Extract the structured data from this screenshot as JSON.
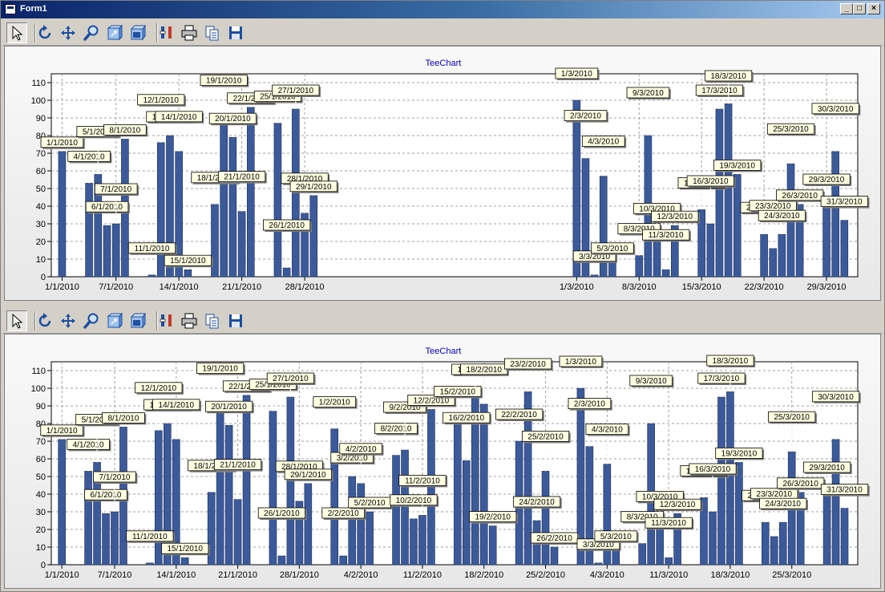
{
  "window": {
    "title": "Form1",
    "min_label": "_",
    "max_label": "□",
    "close_label": "×"
  },
  "toolbar_icons": [
    "pointer-icon",
    "rotate-icon",
    "move-icon",
    "zoom-icon",
    "view3d-icon",
    "depth3d-icon",
    "edit-icon",
    "print-icon",
    "copy-icon",
    "save-icon"
  ],
  "chart_data": [
    {
      "type": "bar",
      "title": "TeeChart",
      "ylim": [
        0,
        115
      ],
      "yticks": [
        0,
        10,
        20,
        30,
        40,
        50,
        60,
        70,
        80,
        90,
        100,
        110
      ],
      "bar_color": "#3c5a9a",
      "label_color": "#ffffe1",
      "xtick_labels": [
        "1/1/2010",
        "7/1/2010",
        "14/1/2010",
        "21/1/2010",
        "28/1/2010",
        "1/3/2010",
        "8/3/2010",
        "15/3/2010",
        "22/3/2010",
        "29/3/2010"
      ],
      "xticks": [
        "1/1/2010",
        "7/1/2010",
        "14/1/2010",
        "21/1/2010",
        "28/1/2010",
        "1/3/2010",
        "8/3/2010",
        "15/3/2010",
        "22/3/2010",
        "29/3/2010"
      ],
      "gap_after": "29/1/2010",
      "categories": [
        "1/1/2010",
        "4/1/2010",
        "5/1/2010",
        "6/1/2010",
        "7/1/2010",
        "8/1/2010",
        "11/1/2010",
        "12/1/2010",
        "13/1/2010",
        "14/1/2010",
        "15/1/2010",
        "18/1/2010",
        "19/1/2010",
        "20/1/2010",
        "21/1/2010",
        "22/1/2010",
        "25/1/2010",
        "26/1/2010",
        "27/1/2010",
        "28/1/2010",
        "29/1/2010",
        "1/3/2010",
        "2/3/2010",
        "3/3/2010",
        "4/3/2010",
        "5/3/2010",
        "8/3/2010",
        "9/3/2010",
        "10/3/2010",
        "11/3/2010",
        "12/3/2010",
        "15/3/2010",
        "16/3/2010",
        "17/3/2010",
        "18/3/2010",
        "19/3/2010",
        "22/3/2010",
        "23/3/2010",
        "24/3/2010",
        "25/3/2010",
        "26/3/2010",
        "29/3/2010",
        "30/3/2010",
        "31/3/2010"
      ],
      "values": [
        71,
        53,
        58,
        29,
        30,
        78,
        1,
        76,
        80,
        71,
        4,
        41,
        87,
        79,
        37,
        96,
        87,
        5,
        95,
        36,
        46,
        100,
        67,
        1,
        57,
        11,
        12,
        80,
        28,
        4,
        29,
        38,
        30,
        95,
        98,
        58,
        24,
        16,
        24,
        64,
        41,
        40,
        71,
        32
      ]
    },
    {
      "type": "bar",
      "title": "TeeChart",
      "ylim": [
        0,
        115
      ],
      "yticks": [
        0,
        10,
        20,
        30,
        40,
        50,
        60,
        70,
        80,
        90,
        100,
        110
      ],
      "bar_color": "#3c5a9a",
      "label_color": "#ffffe1",
      "xtick_labels": [
        "1/1/2010",
        "7/1/2010",
        "14/1/2010",
        "21/1/2010",
        "28/1/2010",
        "4/2/2010",
        "11/2/2010",
        "18/2/2010",
        "25/2/2010",
        "4/3/2010",
        "11/3/2010",
        "18/3/2010",
        "25/3/2010"
      ],
      "xticks": [
        "1/1/2010",
        "7/1/2010",
        "14/1/2010",
        "21/1/2010",
        "28/1/2010",
        "4/2/2010",
        "11/2/2010",
        "18/2/2010",
        "25/2/2010",
        "4/3/2010",
        "11/3/2010",
        "18/3/2010",
        "25/3/2010"
      ],
      "gap_after": "",
      "categories": [
        "1/1/2010",
        "4/1/2010",
        "5/1/2010",
        "6/1/2010",
        "7/1/2010",
        "8/1/2010",
        "11/1/2010",
        "12/1/2010",
        "13/1/2010",
        "14/1/2010",
        "15/1/2010",
        "18/1/2010",
        "19/1/2010",
        "20/1/2010",
        "21/1/2010",
        "22/1/2010",
        "25/1/2010",
        "26/1/2010",
        "27/1/2010",
        "28/1/2010",
        "29/1/2010",
        "1/2/2010",
        "2/2/2010",
        "3/2/2010",
        "4/2/2010",
        "5/2/2010",
        "8/2/2010",
        "9/2/2010",
        "10/2/2010",
        "11/2/2010",
        "12/2/2010",
        "15/2/2010",
        "16/2/2010",
        "17/2/2010",
        "18/2/2010",
        "19/2/2010",
        "22/2/2010",
        "23/2/2010",
        "24/2/2010",
        "25/2/2010",
        "26/2/2010",
        "1/3/2010",
        "2/3/2010",
        "3/3/2010",
        "4/3/2010",
        "5/3/2010",
        "8/3/2010",
        "9/3/2010",
        "10/3/2010",
        "11/3/2010",
        "12/3/2010",
        "15/3/2010",
        "16/3/2010",
        "17/3/2010",
        "18/3/2010",
        "19/3/2010",
        "22/3/2010",
        "23/3/2010",
        "24/3/2010",
        "25/3/2010",
        "26/3/2010",
        "29/3/2010",
        "30/3/2010",
        "31/3/2010"
      ],
      "values": [
        71,
        53,
        58,
        29,
        30,
        78,
        1,
        76,
        80,
        71,
        4,
        41,
        87,
        79,
        37,
        96,
        87,
        5,
        95,
        36,
        46,
        77,
        5,
        50,
        46,
        30,
        62,
        65,
        26,
        28,
        88,
        83,
        59,
        100,
        91,
        22,
        70,
        98,
        25,
        53,
        10,
        100,
        67,
        1,
        57,
        11,
        12,
        80,
        28,
        4,
        29,
        38,
        30,
        95,
        98,
        58,
        24,
        16,
        24,
        64,
        41,
        40,
        71,
        32
      ]
    }
  ]
}
